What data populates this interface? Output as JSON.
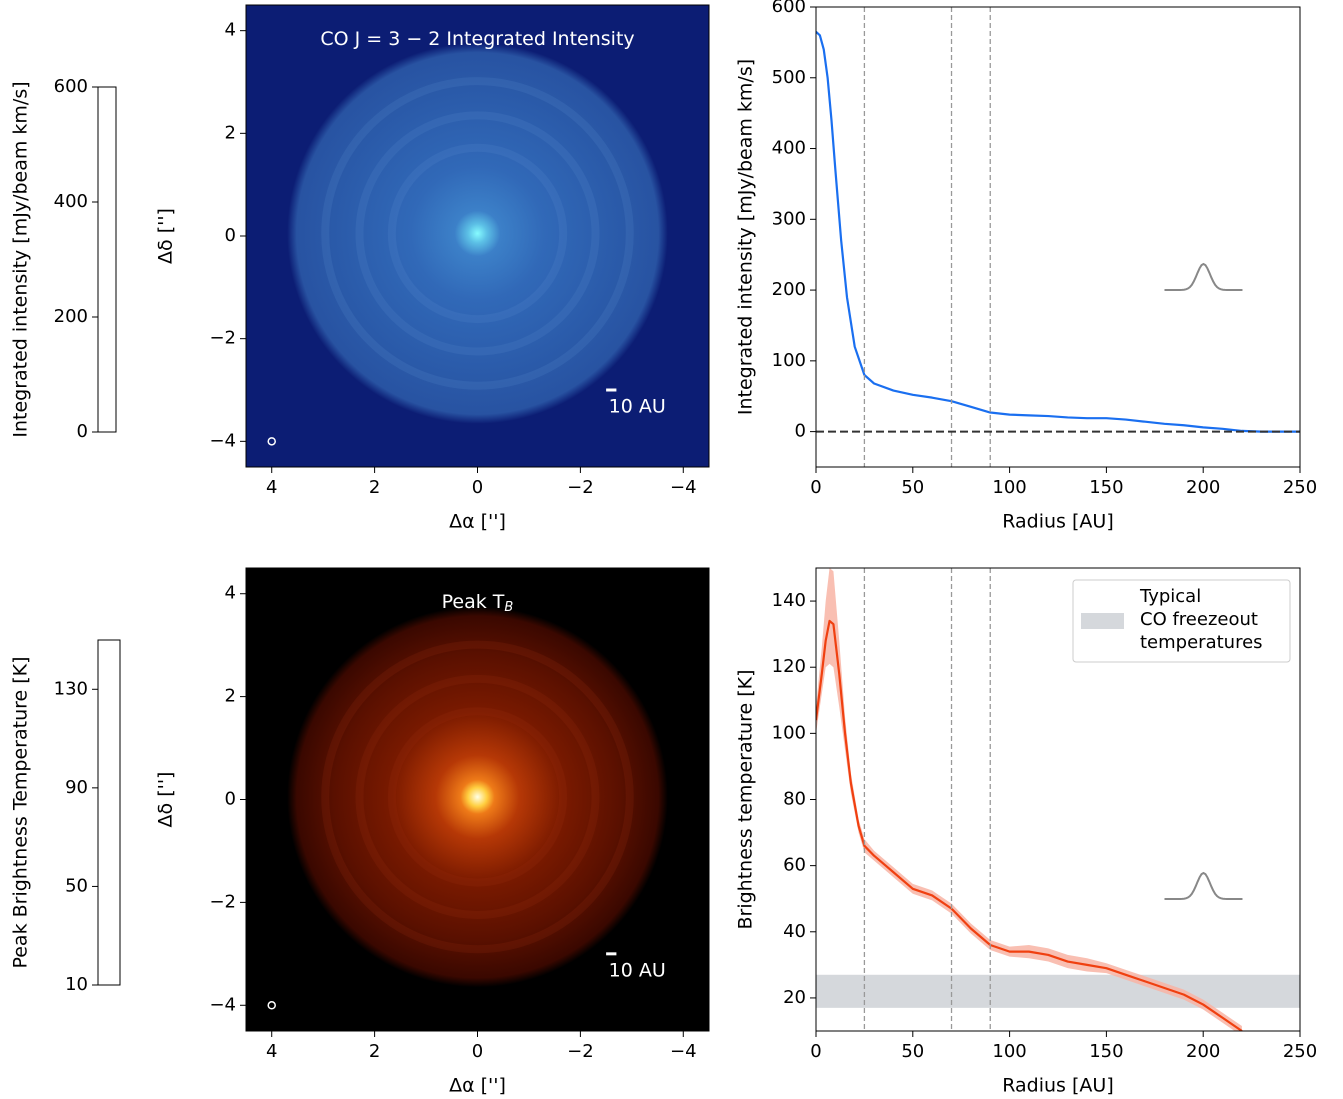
{
  "chart_data": [
    {
      "type": "image",
      "title": "CO J = 3 − 2 Integrated Intensity",
      "xlabel": "Δα ['']",
      "ylabel": "Δδ ['']",
      "xlim": [
        4.5,
        -4.5
      ],
      "ylim": [
        -4.5,
        4.5
      ],
      "xticks": [
        4,
        2,
        0,
        {
          "value": -2,
          "label": "−2"
        },
        {
          "value": -4,
          "label": "−4"
        }
      ],
      "yticks": [
        {
          "value": -4,
          "label": "−4"
        },
        {
          "value": -2,
          "label": "−2"
        },
        0,
        2,
        4
      ],
      "scalebar_label": "10 AU",
      "colorbar": {
        "label": "Integrated intensity [mJy/beam km/s]",
        "lim": [
          0,
          600
        ],
        "ticks": [
          0,
          200,
          400,
          600
        ],
        "colormap": [
          "#17287a",
          "#2f5fae",
          "#4aa6d6",
          "#7ffcff"
        ]
      }
    },
    {
      "type": "line",
      "xlabel": "Radius [AU]",
      "ylabel": "Integrated intensity [mJy/beam km/s]",
      "xlim": [
        0,
        250
      ],
      "ylim": [
        -50,
        600
      ],
      "xticks": [
        0,
        50,
        100,
        150,
        200,
        250
      ],
      "yticks": [
        0,
        100,
        200,
        300,
        400,
        500,
        600
      ],
      "vlines": [
        25,
        70,
        90
      ],
      "hline": 0,
      "x": [
        0,
        2,
        4,
        6,
        8,
        10,
        13,
        16,
        20,
        25,
        30,
        40,
        50,
        60,
        70,
        80,
        90,
        100,
        110,
        120,
        130,
        140,
        150,
        160,
        170,
        180,
        190,
        200,
        210,
        220,
        230,
        250
      ],
      "series": [
        {
          "color": "#1a6ff0",
          "values": [
            565,
            560,
            540,
            500,
            440,
            370,
            270,
            190,
            120,
            80,
            68,
            58,
            52,
            48,
            43,
            35,
            27,
            24,
            23,
            22,
            20,
            19,
            19,
            17,
            14,
            11,
            9,
            6,
            4,
            1,
            0,
            0
          ]
        }
      ]
    },
    {
      "type": "image",
      "title": "Peak T",
      "title_subscript": "B",
      "xlabel": "Δα ['']",
      "ylabel": "Δδ ['']",
      "xlim": [
        4.5,
        -4.5
      ],
      "ylim": [
        -4.5,
        4.5
      ],
      "xticks": [
        4,
        2,
        0,
        {
          "value": -2,
          "label": "−2"
        },
        {
          "value": -4,
          "label": "−4"
        }
      ],
      "yticks": [
        {
          "value": -4,
          "label": "−4"
        },
        {
          "value": -2,
          "label": "−2"
        },
        0,
        2,
        4
      ],
      "scalebar_label": "10 AU",
      "colorbar": {
        "label": "Peak Brightness Temperature [K]",
        "lim": [
          10,
          150
        ],
        "ticks": [
          10,
          50,
          90,
          130
        ],
        "colormap": [
          "#000000",
          "#6a0a00",
          "#d03c00",
          "#ff9a10",
          "#ffe070",
          "#ffffff"
        ]
      }
    },
    {
      "type": "line",
      "xlabel": "Radius [AU]",
      "ylabel": "Brightness temperature [K]",
      "xlim": [
        0,
        250
      ],
      "ylim": [
        10,
        150
      ],
      "xticks": [
        0,
        50,
        100,
        150,
        200,
        250
      ],
      "yticks": [
        20,
        40,
        60,
        80,
        100,
        120,
        140
      ],
      "vlines": [
        25,
        70,
        90
      ],
      "shaded_band": {
        "range": [
          17,
          27
        ],
        "color": "#d5d8dc",
        "label_lines": [
          "Typical",
          "CO freezeout",
          "temperatures"
        ]
      },
      "x": [
        0,
        3,
        5,
        7,
        9,
        12,
        15,
        18,
        22,
        25,
        30,
        40,
        50,
        60,
        70,
        80,
        90,
        100,
        110,
        120,
        130,
        140,
        150,
        160,
        170,
        180,
        190,
        200,
        210,
        220
      ],
      "series": [
        {
          "color": "#f04010",
          "band_color": "#f8b4a4",
          "values": [
            104,
            118,
            128,
            134,
            133,
            118,
            100,
            85,
            72,
            66,
            63,
            58,
            53,
            51,
            47,
            41,
            36,
            34,
            34,
            33,
            31,
            30,
            29,
            27,
            25,
            23,
            21,
            18,
            14,
            10
          ],
          "lower": [
            100,
            112,
            120,
            121,
            120,
            108,
            95,
            82,
            70,
            64,
            61.5,
            56.5,
            51.5,
            49.5,
            45.5,
            39.5,
            34.5,
            32.5,
            32,
            31,
            29,
            28,
            27.5,
            25.5,
            23.5,
            21.5,
            19.5,
            16.5,
            12.5,
            8.5
          ],
          "upper": [
            108,
            126,
            140,
            150,
            149,
            128,
            105,
            88,
            74,
            68,
            64.5,
            59.5,
            54.5,
            52.5,
            48.5,
            42.5,
            37.5,
            35.5,
            36,
            35,
            33,
            32,
            30.5,
            28.5,
            26.5,
            24.5,
            22.5,
            19.5,
            15.5,
            11.5
          ]
        }
      ]
    }
  ]
}
